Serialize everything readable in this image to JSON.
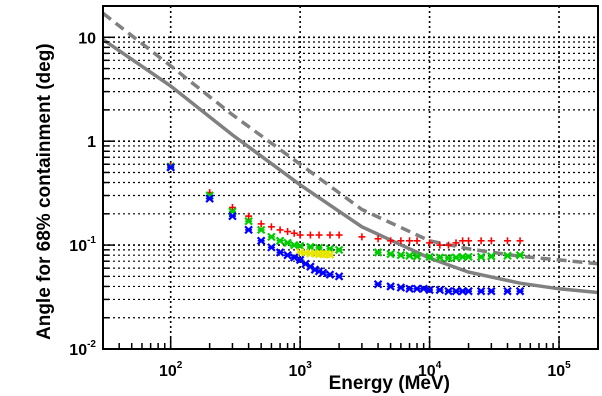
{
  "chart_data": {
    "type": "scatter",
    "title": "",
    "xlabel": "Energy (MeV)",
    "ylabel": "Angle for 68% containment (deg)",
    "xscale": "log",
    "yscale": "log",
    "xlim": [
      30,
      200000
    ],
    "ylim": [
      0.01,
      20
    ],
    "grid": "dotted, major and minor",
    "x_ticks": [
      {
        "base": "10",
        "exp": "2",
        "value": 100
      },
      {
        "base": "10",
        "exp": "3",
        "value": 1000
      },
      {
        "base": "10",
        "exp": "4",
        "value": 10000
      },
      {
        "base": "10",
        "exp": "5",
        "value": 100000
      }
    ],
    "y_ticks": [
      {
        "base": "10",
        "exp": "-2",
        "value": 0.01
      },
      {
        "base": "10",
        "exp": "-1",
        "value": 0.1
      },
      {
        "base": "1",
        "exp": "",
        "value": 1
      },
      {
        "base": "10",
        "exp": "",
        "value": 10
      }
    ],
    "series": [
      {
        "marker": "+",
        "color": "#ff0000",
        "x": [
          100,
          200,
          300,
          400,
          500,
          600,
          700,
          800,
          900,
          1000,
          1200,
          1400,
          1700,
          2000,
          3000,
          4000,
          5000,
          6000,
          7000,
          8000,
          10000,
          12000,
          14000,
          16000,
          18000,
          20000,
          25000,
          30000,
          40000,
          50000
        ],
        "y": [
          0.58,
          0.32,
          0.23,
          0.19,
          0.16,
          0.15,
          0.14,
          0.135,
          0.13,
          0.125,
          0.125,
          0.125,
          0.125,
          0.125,
          0.12,
          0.115,
          0.11,
          0.11,
          0.11,
          0.11,
          0.105,
          0.1,
          0.1,
          0.105,
          0.11,
          0.11,
          0.11,
          0.11,
          0.11,
          0.11
        ]
      },
      {
        "marker": "x",
        "color": "#00cc00",
        "x": [
          100,
          200,
          300,
          400,
          500,
          600,
          700,
          800,
          900,
          1000,
          1200,
          1400,
          1700,
          2000,
          4000,
          5000,
          6000,
          7000,
          8000,
          10000,
          12000,
          14000,
          16000,
          18000,
          20000,
          25000,
          30000,
          40000,
          50000
        ],
        "y": [
          0.57,
          0.3,
          0.21,
          0.17,
          0.14,
          0.12,
          0.11,
          0.105,
          0.1,
          0.098,
          0.096,
          0.094,
          0.092,
          0.09,
          0.085,
          0.082,
          0.08,
          0.079,
          0.078,
          0.077,
          0.076,
          0.075,
          0.076,
          0.077,
          0.077,
          0.077,
          0.078,
          0.079,
          0.08
        ]
      },
      {
        "marker": "x",
        "color": "#e6e600",
        "x": [
          1000,
          1100,
          1200,
          1300,
          1400,
          1500,
          1600,
          1700
        ],
        "y": [
          0.085,
          0.084,
          0.083,
          0.083,
          0.082,
          0.082,
          0.082,
          0.081
        ]
      },
      {
        "marker": "x",
        "color": "#0000ff",
        "x": [
          100,
          200,
          300,
          400,
          500,
          600,
          700,
          800,
          900,
          1000,
          1100,
          1200,
          1300,
          1400,
          1500,
          1700,
          2000,
          4000,
          5000,
          6000,
          7000,
          8000,
          9000,
          10000,
          12000,
          14000,
          16000,
          18000,
          20000,
          25000,
          30000,
          40000,
          50000
        ],
        "y": [
          0.56,
          0.28,
          0.19,
          0.14,
          0.11,
          0.095,
          0.085,
          0.08,
          0.076,
          0.072,
          0.066,
          0.062,
          0.058,
          0.056,
          0.054,
          0.052,
          0.05,
          0.042,
          0.04,
          0.039,
          0.038,
          0.038,
          0.038,
          0.037,
          0.037,
          0.036,
          0.036,
          0.036,
          0.036,
          0.036,
          0.036,
          0.036,
          0.036
        ]
      }
    ],
    "curves": [
      {
        "style": "dashed",
        "color": "#808080",
        "x": [
          30,
          100,
          300,
          1000,
          3000,
          10000,
          20000,
          50000,
          100000,
          200000
        ],
        "y": [
          17,
          5.3,
          1.8,
          0.6,
          0.22,
          0.11,
          0.092,
          0.078,
          0.072,
          0.066
        ]
      },
      {
        "style": "solid",
        "color": "#808080",
        "x": [
          30,
          100,
          300,
          1000,
          3000,
          10000,
          20000,
          50000,
          100000,
          200000
        ],
        "y": [
          9.5,
          3.4,
          1.15,
          0.38,
          0.15,
          0.075,
          0.055,
          0.043,
          0.038,
          0.035
        ]
      }
    ]
  }
}
